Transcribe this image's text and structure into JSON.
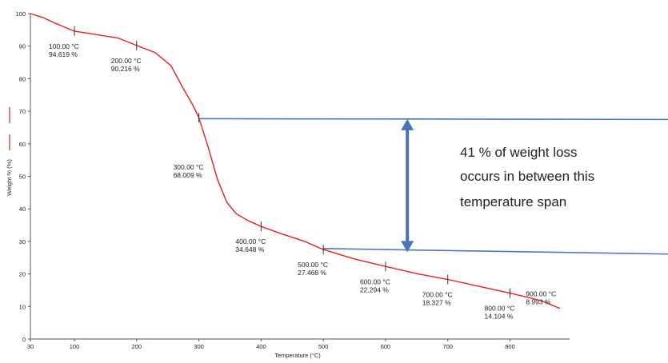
{
  "chart_data": {
    "type": "line",
    "xlabel": "Temperature (°C)",
    "ylabel": "Weight % (%)",
    "xlim": [
      30,
      890
    ],
    "ylim": [
      0,
      100
    ],
    "x_ticks": [
      30,
      100,
      200,
      300,
      400,
      500,
      600,
      700,
      800
    ],
    "y_ticks": [
      0,
      10,
      20,
      30,
      40,
      50,
      60,
      70,
      80,
      90,
      100
    ],
    "grid": false,
    "legend": "left",
    "series": [
      {
        "color": "#e8201c",
        "points": [
          [
            30,
            100
          ],
          [
            50,
            98.8
          ],
          [
            70,
            97.0
          ],
          [
            85,
            95.8
          ],
          [
            100,
            94.6
          ],
          [
            130,
            93.7
          ],
          [
            170,
            92.5
          ],
          [
            200,
            90.2
          ],
          [
            230,
            88.0
          ],
          [
            255,
            84.0
          ],
          [
            275,
            77.0
          ],
          [
            290,
            72.0
          ],
          [
            300,
            68.0
          ],
          [
            315,
            59.0
          ],
          [
            330,
            49.0
          ],
          [
            345,
            42.0
          ],
          [
            360,
            38.5
          ],
          [
            380,
            36.3
          ],
          [
            400,
            34.6
          ],
          [
            430,
            32.5
          ],
          [
            470,
            30.0
          ],
          [
            500,
            27.5
          ],
          [
            550,
            24.6
          ],
          [
            600,
            22.3
          ],
          [
            650,
            20.1
          ],
          [
            700,
            18.3
          ],
          [
            750,
            16.2
          ],
          [
            800,
            14.1
          ],
          [
            850,
            11.8
          ],
          [
            870,
            10.2
          ],
          [
            880,
            9.4
          ]
        ]
      }
    ],
    "annotations": [
      {
        "x": 100,
        "y": 94.619,
        "label": "100.00 °C\n94.619 %"
      },
      {
        "x": 200,
        "y": 90.216,
        "label": "200.00 °C\n90.216 %"
      },
      {
        "x": 300,
        "y": 68.009,
        "label": "300.00 °C\n68.009 %"
      },
      {
        "x": 400,
        "y": 34.648,
        "label": "400.00 °C\n34.648 %"
      },
      {
        "x": 500,
        "y": 27.468,
        "label": "500.00 °C\n27.468 %"
      },
      {
        "x": 600,
        "y": 22.294,
        "label": "600.00 °C\n22.294 %"
      },
      {
        "x": 700,
        "y": 18.327,
        "label": "700.00 °C\n18.327 %"
      },
      {
        "x": 800,
        "y": 14.104,
        "label": "800.00 °C\n14.104 %"
      },
      {
        "x": 900,
        "y": 8.993,
        "label": "900.00 °C\n8.993 %"
      }
    ],
    "reference_lines": [
      {
        "x1": 300,
        "y1": 67.7,
        "x2": 1320,
        "y2": 67.4,
        "color": "#4a7bbf"
      },
      {
        "x1": 500,
        "y1": 27.8,
        "x2": 1220,
        "y2": 25.6,
        "color": "#4a7bbf"
      }
    ],
    "span_arrow": {
      "x": 635,
      "y_top": 67.6,
      "y_bottom": 26.7,
      "color": "#4a72b8"
    },
    "note": [
      "41 % of weight loss",
      "occurs in between this",
      "temperature span"
    ]
  }
}
